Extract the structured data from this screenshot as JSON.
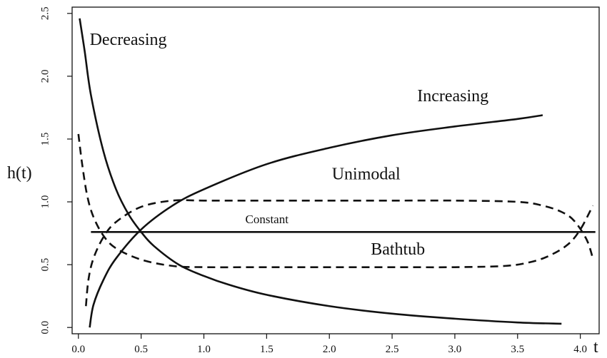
{
  "chart_data": {
    "type": "line",
    "xlabel": "t",
    "ylabel": "h(t)",
    "xlim": [
      -0.05,
      4.15
    ],
    "ylim": [
      -0.05,
      2.55
    ],
    "xticks": [
      "0.0",
      "0.5",
      "1.0",
      "1.5",
      "2.0",
      "2.5",
      "3.0",
      "3.5",
      "4.0"
    ],
    "yticks": [
      "0.0",
      "0.5",
      "1.0",
      "1.5",
      "2.0",
      "2.5"
    ],
    "grid": false,
    "legend": "none",
    "series": [
      {
        "name": "Decreasing",
        "line": "solid",
        "x": [
          0.01,
          0.05,
          0.1,
          0.2,
          0.3,
          0.4,
          0.5,
          0.6,
          0.8,
          1.0,
          1.2,
          1.5,
          2.0,
          2.5,
          3.0,
          3.5,
          3.85
        ],
        "y": [
          2.46,
          2.2,
          1.85,
          1.4,
          1.1,
          0.9,
          0.76,
          0.65,
          0.5,
          0.41,
          0.34,
          0.26,
          0.17,
          0.11,
          0.07,
          0.04,
          0.03
        ]
      },
      {
        "name": "Increasing",
        "line": "solid",
        "x": [
          0.09,
          0.12,
          0.2,
          0.3,
          0.5,
          0.75,
          1.0,
          1.5,
          2.0,
          2.5,
          3.0,
          3.5,
          3.7
        ],
        "y": [
          0.0,
          0.18,
          0.38,
          0.55,
          0.78,
          0.97,
          1.1,
          1.3,
          1.43,
          1.53,
          1.6,
          1.66,
          1.69
        ]
      },
      {
        "name": "Unimodal",
        "line": "dashed",
        "x": [
          0.06,
          0.08,
          0.12,
          0.2,
          0.3,
          0.5,
          0.75,
          1.0,
          1.5,
          2.0,
          2.5,
          3.0,
          3.5,
          3.7,
          3.85,
          3.95,
          4.05,
          4.1
        ],
        "y": [
          0.17,
          0.38,
          0.55,
          0.72,
          0.84,
          0.96,
          1.01,
          1.01,
          1.01,
          1.01,
          1.01,
          1.01,
          1.0,
          0.97,
          0.92,
          0.85,
          0.7,
          0.55
        ]
      },
      {
        "name": "Bathtub",
        "line": "dashed",
        "x": [
          0.0,
          0.03,
          0.07,
          0.12,
          0.2,
          0.3,
          0.5,
          0.75,
          1.0,
          1.5,
          2.0,
          2.5,
          3.0,
          3.4,
          3.6,
          3.75,
          3.9,
          4.0,
          4.1
        ],
        "y": [
          1.54,
          1.3,
          1.05,
          0.88,
          0.73,
          0.63,
          0.54,
          0.49,
          0.48,
          0.48,
          0.48,
          0.48,
          0.48,
          0.49,
          0.52,
          0.57,
          0.66,
          0.78,
          0.97
        ]
      },
      {
        "name": "Constant",
        "line": "solid",
        "x": [
          0.1,
          4.12
        ],
        "y": [
          0.76,
          0.76
        ]
      }
    ],
    "annotations": [
      {
        "text": "Decreasing",
        "x": 0.09,
        "y": 2.25,
        "size": 24
      },
      {
        "text": "Increasing",
        "x": 2.7,
        "y": 1.8,
        "size": 24
      },
      {
        "text": "Unimodal",
        "x": 2.02,
        "y": 1.18,
        "size": 24
      },
      {
        "text": "Constant",
        "x": 1.33,
        "y": 0.83,
        "size": 17
      },
      {
        "text": "Bathtub",
        "x": 2.33,
        "y": 0.58,
        "size": 24
      }
    ]
  }
}
